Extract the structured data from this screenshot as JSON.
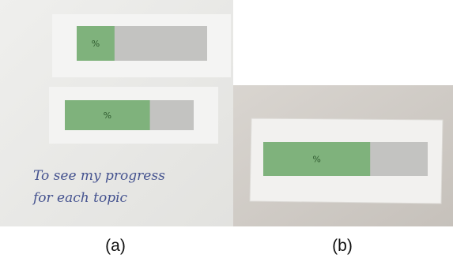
{
  "panels": [
    {
      "bars": [
        {
          "label": "%",
          "fill": 29
        },
        {
          "label": "%",
          "fill": 66
        }
      ],
      "note": [
        "To see my progress",
        "for each topic"
      ],
      "caption": "(a)"
    },
    {
      "bars": [
        {
          "label": "%",
          "fill": 65
        }
      ],
      "caption": "(b)"
    }
  ]
}
